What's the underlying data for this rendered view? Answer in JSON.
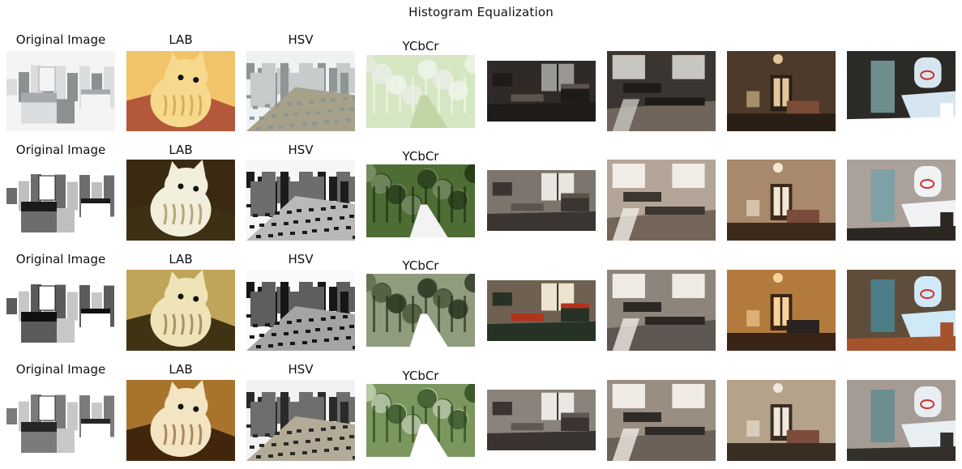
{
  "figure": {
    "title": "Histogram Equalization"
  },
  "columns": [
    "Original Image",
    "LAB",
    "HSV",
    "YCbCr"
  ],
  "rows": [
    {
      "variant": "washed-out",
      "tiles": [
        {
          "subject": "city-rooftops",
          "palette": [
            "#f4f4f4",
            "#d9dde0",
            "#a6a9ad",
            "#8b9090"
          ]
        },
        {
          "subject": "kitten",
          "palette": [
            "#f2c46a",
            "#f7d98d",
            "#c49042",
            "#b3583a"
          ]
        },
        {
          "subject": "city-aerial",
          "palette": [
            "#eef2f2",
            "#c6cccc",
            "#8d9595",
            "#a7a18a"
          ]
        },
        {
          "subject": "forest-road",
          "palette": [
            "#eef5e6",
            "#d5e6c2",
            "#c1d6a5",
            "#e5ebe0"
          ]
        },
        {
          "subject": "dark-living-room",
          "palette": [
            "#2f2a27",
            "#1f1b19",
            "#9a9895",
            "#5e534c"
          ]
        },
        {
          "subject": "dark-lounge",
          "palette": [
            "#3a3530",
            "#1e1b18",
            "#c8c6c0",
            "#6f655b"
          ]
        },
        {
          "subject": "warm-hall",
          "palette": [
            "#4d3a2a",
            "#2a1f16",
            "#e2c79b",
            "#7b4c38"
          ]
        },
        {
          "subject": "bedroom",
          "palette": [
            "#2c2a26",
            "#6f8d8f",
            "#d5e6f1",
            "#ffffff"
          ]
        }
      ]
    },
    {
      "variant": "high-contrast",
      "tiles": [
        {
          "subject": "city-rooftops",
          "palette": [
            "#ffffff",
            "#6d6d6d",
            "#1a1a1a",
            "#bfbfbf"
          ]
        },
        {
          "subject": "kitten",
          "palette": [
            "#3a2a12",
            "#f2eedc",
            "#8f7736",
            "#3d3013"
          ]
        },
        {
          "subject": "city-aerial",
          "palette": [
            "#f6f6f6",
            "#6d6d6d",
            "#1c1c1c",
            "#b9b9b9"
          ]
        },
        {
          "subject": "forest-road",
          "palette": [
            "#1e3212",
            "#4e6d34",
            "#f3f3f3",
            "#7f966b"
          ]
        },
        {
          "subject": "dark-living-room",
          "palette": [
            "#7b756e",
            "#3a3531",
            "#e9e6df",
            "#5c534c"
          ]
        },
        {
          "subject": "dark-lounge",
          "palette": [
            "#b3a598",
            "#3c3530",
            "#f1ece5",
            "#736659"
          ]
        },
        {
          "subject": "warm-hall",
          "palette": [
            "#a8896b",
            "#3c2b1d",
            "#f3e8d4",
            "#7a4a3c"
          ]
        },
        {
          "subject": "bedroom",
          "palette": [
            "#a9a19a",
            "#7fa1a5",
            "#f0f2f4",
            "#2b2723"
          ]
        }
      ]
    },
    {
      "variant": "equalized",
      "tiles": [
        {
          "subject": "city-rooftops",
          "palette": [
            "#ffffff",
            "#5b5b5b",
            "#0f0f0f",
            "#c7c7c7"
          ]
        },
        {
          "subject": "kitten",
          "palette": [
            "#c0a45a",
            "#efe3b8",
            "#75602a",
            "#3f3314"
          ]
        },
        {
          "subject": "city-aerial",
          "palette": [
            "#fafafa",
            "#5e5e5e",
            "#161616",
            "#a4a4a4"
          ]
        },
        {
          "subject": "forest-road",
          "palette": [
            "#2a3422",
            "#8f9c7e",
            "#ffffff",
            "#5a6a48"
          ]
        },
        {
          "subject": "dark-living-room",
          "palette": [
            "#6f6151",
            "#263226",
            "#ede3cf",
            "#b2331b"
          ]
        },
        {
          "subject": "dark-lounge",
          "palette": [
            "#8d857b",
            "#2c2723",
            "#eeeae4",
            "#5e5650"
          ]
        },
        {
          "subject": "warm-hall",
          "palette": [
            "#b27a3d",
            "#3a2415",
            "#f6d39a",
            "#2a2220"
          ]
        },
        {
          "subject": "bedroom",
          "palette": [
            "#5e4d3b",
            "#4d7e88",
            "#cfe9f7",
            "#a4532d"
          ]
        }
      ]
    },
    {
      "variant": "balanced",
      "tiles": [
        {
          "subject": "city-rooftops",
          "palette": [
            "#ffffff",
            "#7b7b7b",
            "#262626",
            "#c8c8c8"
          ]
        },
        {
          "subject": "kitten",
          "palette": [
            "#a8742c",
            "#f3e4c2",
            "#7e4b1c",
            "#41260d"
          ]
        },
        {
          "subject": "city-aerial",
          "palette": [
            "#f2f2f2",
            "#6e6e6e",
            "#2a2a2a",
            "#b3ab98"
          ]
        },
        {
          "subject": "forest-road",
          "palette": [
            "#2c4a1d",
            "#7b965e",
            "#ffffff",
            "#c9d6b8"
          ]
        },
        {
          "subject": "dark-living-room",
          "palette": [
            "#8a837b",
            "#3a3430",
            "#ebe8e3",
            "#5f5750"
          ]
        },
        {
          "subject": "dark-lounge",
          "palette": [
            "#9a8d82",
            "#2f2a26",
            "#f0ebe5",
            "#6b6157"
          ]
        },
        {
          "subject": "warm-hall",
          "palette": [
            "#b5a28b",
            "#3a2d22",
            "#f0e7dc",
            "#7c4d3c"
          ]
        },
        {
          "subject": "bedroom",
          "palette": [
            "#a39b94",
            "#6d8d90",
            "#e8eef2",
            "#332f2b"
          ]
        }
      ]
    }
  ]
}
